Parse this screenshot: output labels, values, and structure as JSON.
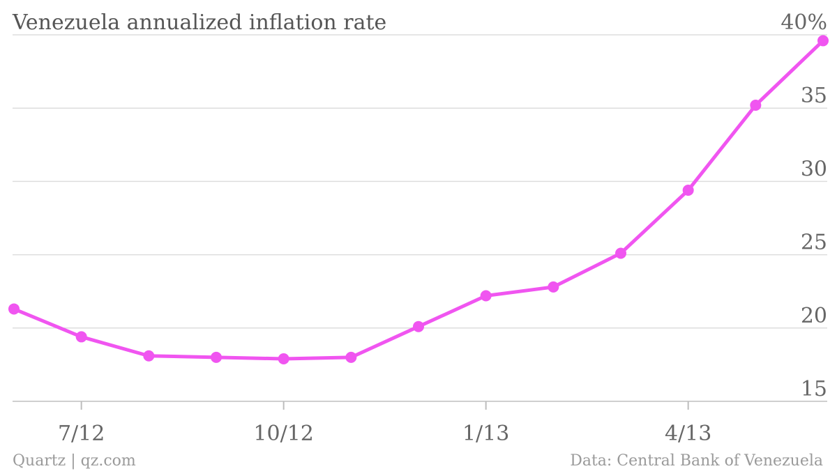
{
  "chart_data": {
    "type": "line",
    "title": "Venezuela annualized inflation rate",
    "ylim": [
      15,
      40
    ],
    "yticks": [
      15,
      20,
      25,
      30,
      35,
      40
    ],
    "ytick_labels": [
      "15",
      "20",
      "25",
      "30",
      "35",
      "40%"
    ],
    "xtick_labels": [
      "7/12",
      "10/12",
      "1/13",
      "4/13"
    ],
    "xticks": [
      "2012-07",
      "2012-10",
      "2013-01",
      "2013-04"
    ],
    "grid": true,
    "series": [
      {
        "color": "#f055f0",
        "x": [
          "2012-06",
          "2012-07",
          "2012-08",
          "2012-09",
          "2012-10",
          "2012-11",
          "2012-12",
          "2013-01",
          "2013-02",
          "2013-03",
          "2013-04",
          "2013-05",
          "2013-06"
        ],
        "values": [
          21.3,
          19.4,
          18.1,
          18.0,
          17.9,
          18.0,
          20.1,
          22.2,
          22.8,
          25.1,
          29.4,
          35.2,
          39.6
        ]
      }
    ]
  },
  "footer": {
    "source_left": "Quartz | qz.com",
    "source_right": "Data: Central Bank of Venezuela"
  }
}
